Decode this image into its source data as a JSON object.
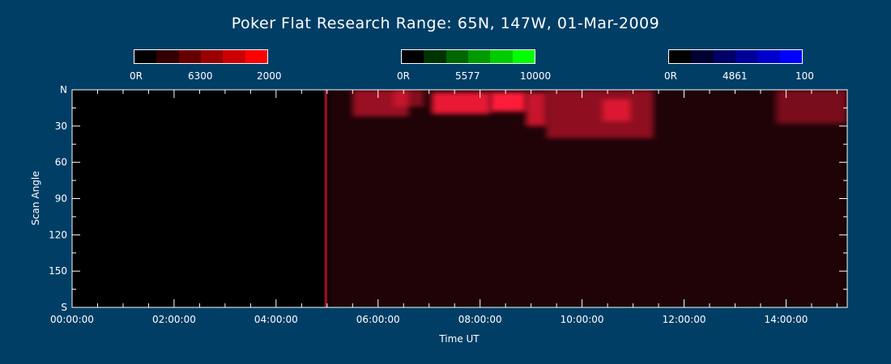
{
  "title": "Poker Flat Research Range: 65N, 147W, 01-Mar-2009",
  "colorbars": [
    {
      "name": "red",
      "min_label": "0R",
      "wavelength_label": "6300",
      "max_label": "2000",
      "colors": [
        "#000000",
        "#330000",
        "#660000",
        "#990000",
        "#cc0000",
        "#ff0000"
      ]
    },
    {
      "name": "green",
      "min_label": "0R",
      "wavelength_label": "5577",
      "max_label": "10000",
      "colors": [
        "#000000",
        "#003300",
        "#006600",
        "#009900",
        "#00cc00",
        "#00ff00"
      ]
    },
    {
      "name": "blue",
      "min_label": "0R",
      "wavelength_label": "4861",
      "max_label": "100",
      "colors": [
        "#000000",
        "#000033",
        "#000066",
        "#000099",
        "#0000cc",
        "#0000ff"
      ]
    }
  ],
  "chart_data": {
    "type": "heatmap",
    "title": "Poker Flat Research Range: 65N, 147W, 01-Mar-2009",
    "xlabel": "Time UT",
    "ylabel": "Scan Angle",
    "x_range_hours": [
      0,
      15.2
    ],
    "y_range_deg": [
      0,
      180
    ],
    "x_ticks": [
      {
        "hours": 0,
        "label": "00:00:00"
      },
      {
        "hours": 2,
        "label": "02:00:00"
      },
      {
        "hours": 4,
        "label": "04:00:00"
      },
      {
        "hours": 6,
        "label": "06:00:00"
      },
      {
        "hours": 8,
        "label": "08:00:00"
      },
      {
        "hours": 10,
        "label": "10:00:00"
      },
      {
        "hours": 12,
        "label": "12:00:00"
      },
      {
        "hours": 14,
        "label": "14:00:00"
      }
    ],
    "y_ticks": [
      {
        "deg": 0,
        "label": "N"
      },
      {
        "deg": 30,
        "label": "30"
      },
      {
        "deg": 60,
        "label": "60"
      },
      {
        "deg": 90,
        "label": "90"
      },
      {
        "deg": 120,
        "label": "120"
      },
      {
        "deg": 150,
        "label": "150"
      },
      {
        "deg": 180,
        "label": "S"
      }
    ],
    "background_color": "#000000",
    "emission_color": "#ff1a3a",
    "features": [
      {
        "t_start": 4.95,
        "t_end": 5.0,
        "angle_start": 0,
        "angle_end": 180,
        "intensity": 0.6
      },
      {
        "t_start": 5.5,
        "t_end": 6.6,
        "angle_start": 0,
        "angle_end": 22,
        "intensity": 0.55
      },
      {
        "t_start": 6.3,
        "t_end": 6.9,
        "angle_start": 0,
        "angle_end": 14,
        "intensity": 0.45
      },
      {
        "t_start": 7.05,
        "t_end": 8.2,
        "angle_start": 2,
        "angle_end": 20,
        "intensity": 0.9
      },
      {
        "t_start": 8.2,
        "t_end": 8.9,
        "angle_start": 2,
        "angle_end": 18,
        "intensity": 1.0
      },
      {
        "t_start": 8.9,
        "t_end": 9.3,
        "angle_start": 2,
        "angle_end": 30,
        "intensity": 0.75
      },
      {
        "t_start": 9.3,
        "t_end": 11.4,
        "angle_start": 0,
        "angle_end": 40,
        "intensity": 0.5
      },
      {
        "t_start": 10.4,
        "t_end": 10.95,
        "angle_start": 8,
        "angle_end": 26,
        "intensity": 0.7
      },
      {
        "t_start": 13.8,
        "t_end": 15.2,
        "angle_start": 0,
        "angle_end": 28,
        "intensity": 0.4
      },
      {
        "t_start": 5.0,
        "t_end": 15.2,
        "angle_start": 0,
        "angle_end": 180,
        "intensity": 0.12
      }
    ]
  }
}
